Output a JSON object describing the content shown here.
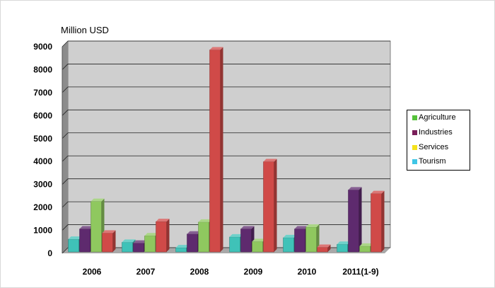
{
  "chart_data": {
    "type": "bar",
    "ylabel": "Million USD",
    "ylim": [
      0,
      9000
    ],
    "yticks": [
      0,
      1000,
      2000,
      3000,
      4000,
      5000,
      6000,
      7000,
      8000,
      9000
    ],
    "categories": [
      "2006",
      "2007",
      "2008",
      "2009",
      "2010",
      "2011(1-9)"
    ],
    "grid": true,
    "legend_position": "right",
    "series": [
      {
        "name": "Tourism",
        "color": "#3fc2b8",
        "values": [
          550,
          420,
          180,
          650,
          620,
          330
        ]
      },
      {
        "name": "Industries",
        "color": "#5e2a6e",
        "values": [
          1000,
          380,
          780,
          1000,
          1000,
          2700
        ]
      },
      {
        "name": "Agriculture",
        "color": "#8fc85f",
        "values": [
          2200,
          700,
          1300,
          450,
          1080,
          250
        ]
      },
      {
        "name": "Services",
        "color": "#d04a48",
        "values": [
          820,
          1320,
          8800,
          3930,
          200,
          2540
        ]
      }
    ]
  },
  "legend": [
    {
      "label": "Agriculture",
      "color": "#55c23a"
    },
    {
      "label": "Industries",
      "color": "#7a1e5a"
    },
    {
      "label": "Services",
      "color": "#f5e21c"
    },
    {
      "label": "Tourism",
      "color": "#3fc6e6"
    }
  ]
}
